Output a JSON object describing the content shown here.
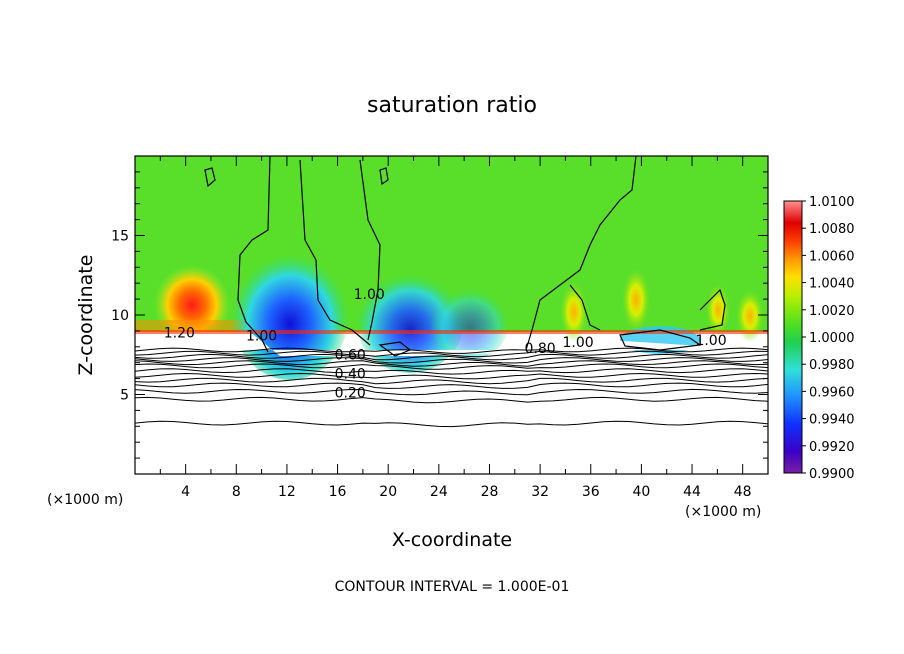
{
  "chart_data": {
    "type": "heatmap",
    "title": "saturation ratio",
    "xlabel": "X-coordinate",
    "ylabel": "Z-coordinate",
    "x_unit_label": "(×1000 m)",
    "z_unit_label": "(×1000 m)",
    "footer": "CONTOUR INTERVAL = 1.000E-01",
    "xlim": [
      0,
      50
    ],
    "ylim": [
      0,
      20
    ],
    "x_ticks": [
      "4",
      "8",
      "12",
      "16",
      "20",
      "24",
      "28",
      "32",
      "36",
      "40",
      "44",
      "48"
    ],
    "x_tick_values": [
      4,
      8,
      12,
      16,
      20,
      24,
      28,
      32,
      36,
      40,
      44,
      48
    ],
    "y_ticks": [
      "5",
      "10",
      "15"
    ],
    "y_tick_values": [
      5,
      10,
      15
    ],
    "colorbar": {
      "min": 0.99,
      "max": 1.01,
      "labels": [
        "1.0100",
        "1.0080",
        "1.0060",
        "1.0040",
        "1.0020",
        "1.0000",
        "0.9980",
        "0.9960",
        "0.9940",
        "0.9920",
        "0.9900"
      ],
      "colors": [
        "#7a1fa2",
        "#3b00c8",
        "#1030ff",
        "#1e90ff",
        "#30e0d8",
        "#20d050",
        "#50e020",
        "#b8f000",
        "#ffe000",
        "#ffa000",
        "#ff4000",
        "#e00000",
        "#ff9090"
      ]
    },
    "contour_labels": [
      {
        "text": "1.20",
        "x": 3.5,
        "z": 8.6
      },
      {
        "text": "1.00",
        "x": 10.0,
        "z": 8.4
      },
      {
        "text": "1.00",
        "x": 18.5,
        "z": 11.0
      },
      {
        "text": "0.60",
        "x": 17.0,
        "z": 7.2
      },
      {
        "text": "0.40",
        "x": 17.0,
        "z": 6.0
      },
      {
        "text": "0.20",
        "x": 17.0,
        "z": 4.8
      },
      {
        "text": "0.80",
        "x": 32.0,
        "z": 7.6
      },
      {
        "text": "1.00",
        "x": 35.0,
        "z": 8.0
      },
      {
        "text": "1.00",
        "x": 45.5,
        "z": 8.1
      }
    ],
    "regions": [
      {
        "name": "upper-layer-mean",
        "range_z": [
          8.5,
          20
        ],
        "value": 1.0005
      },
      {
        "name": "warm-core",
        "x": 4.5,
        "z": 11.0,
        "value": 1.009
      },
      {
        "name": "dry-plume-1",
        "x": 12.0,
        "z": 10.0,
        "value": 0.993
      },
      {
        "name": "dry-plume-2",
        "x": 21.0,
        "z": 9.0,
        "value": 0.994
      },
      {
        "name": "moist-spot",
        "x": 34.5,
        "z": 9.5,
        "value": 1.004
      },
      {
        "name": "moist-spot-2",
        "x": 39.5,
        "z": 10.0,
        "value": 1.003
      }
    ]
  }
}
